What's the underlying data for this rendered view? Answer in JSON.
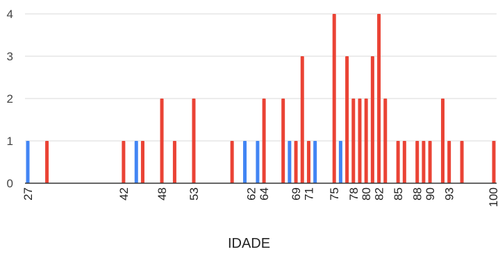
{
  "chart_data": {
    "type": "bar",
    "xlabel": "IDADE",
    "ylabel": "",
    "ylim": [
      0,
      4
    ],
    "yticks": [
      0,
      1,
      2,
      3,
      4
    ],
    "grid": true,
    "legend": "none",
    "x_tick_labels": [
      "27",
      "42",
      "48",
      "53",
      "62",
      "64",
      "69",
      "71",
      "75",
      "78",
      "80",
      "82",
      "85",
      "88",
      "90",
      "93",
      "100"
    ],
    "colors": {
      "blue": "#4285f4",
      "red": "#ea4335",
      "grid": "#d9d9d9",
      "axis": "#333333"
    },
    "series": [
      {
        "color": "blue",
        "points": [
          [
            27,
            1
          ],
          [
            44,
            1
          ],
          [
            61,
            1
          ],
          [
            63,
            1
          ],
          [
            68,
            1
          ],
          [
            72,
            1
          ],
          [
            76,
            1
          ]
        ]
      },
      {
        "color": "red",
        "points": [
          [
            30,
            1
          ],
          [
            42,
            1
          ],
          [
            45,
            1
          ],
          [
            48,
            2
          ],
          [
            50,
            1
          ],
          [
            53,
            2
          ],
          [
            59,
            1
          ],
          [
            64,
            2
          ],
          [
            67,
            2
          ],
          [
            69,
            1
          ],
          [
            70,
            3
          ],
          [
            71,
            1
          ],
          [
            75,
            4
          ],
          [
            77,
            3
          ],
          [
            78,
            2
          ],
          [
            79,
            2
          ],
          [
            80,
            2
          ],
          [
            81,
            3
          ],
          [
            82,
            4
          ],
          [
            83,
            2
          ],
          [
            85,
            1
          ],
          [
            86,
            1
          ],
          [
            88,
            1
          ],
          [
            89,
            1
          ],
          [
            90,
            1
          ],
          [
            92,
            2
          ],
          [
            93,
            1
          ],
          [
            95,
            1
          ],
          [
            100,
            1
          ]
        ]
      }
    ]
  }
}
